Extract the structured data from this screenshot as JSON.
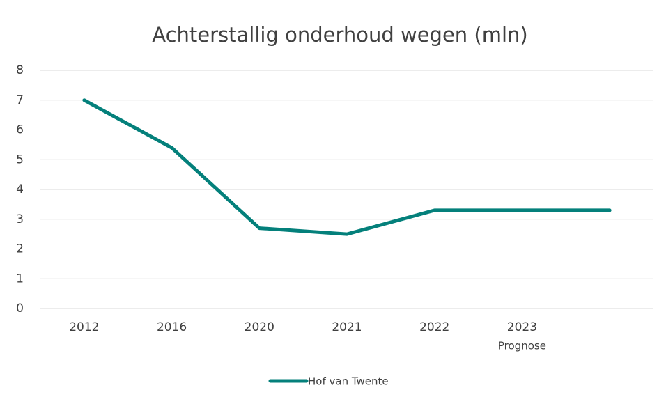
{
  "chart_data": {
    "type": "line",
    "title": "Achterstallig onderhoud wegen (mln)",
    "categories": [
      "2012",
      "2016",
      "2020",
      "2021",
      "2022",
      "2023",
      null
    ],
    "category_note": "Prognose",
    "series": [
      {
        "name": "Hof van Twente",
        "color": "#04807b",
        "values": [
          7,
          5.4,
          2.7,
          2.5,
          3.3,
          3.3,
          3.3
        ]
      }
    ],
    "ylim": [
      0,
      8
    ],
    "yticks": [
      0,
      1,
      2,
      3,
      4,
      5,
      6,
      7,
      8
    ],
    "grid": true,
    "legend": "bottom"
  }
}
